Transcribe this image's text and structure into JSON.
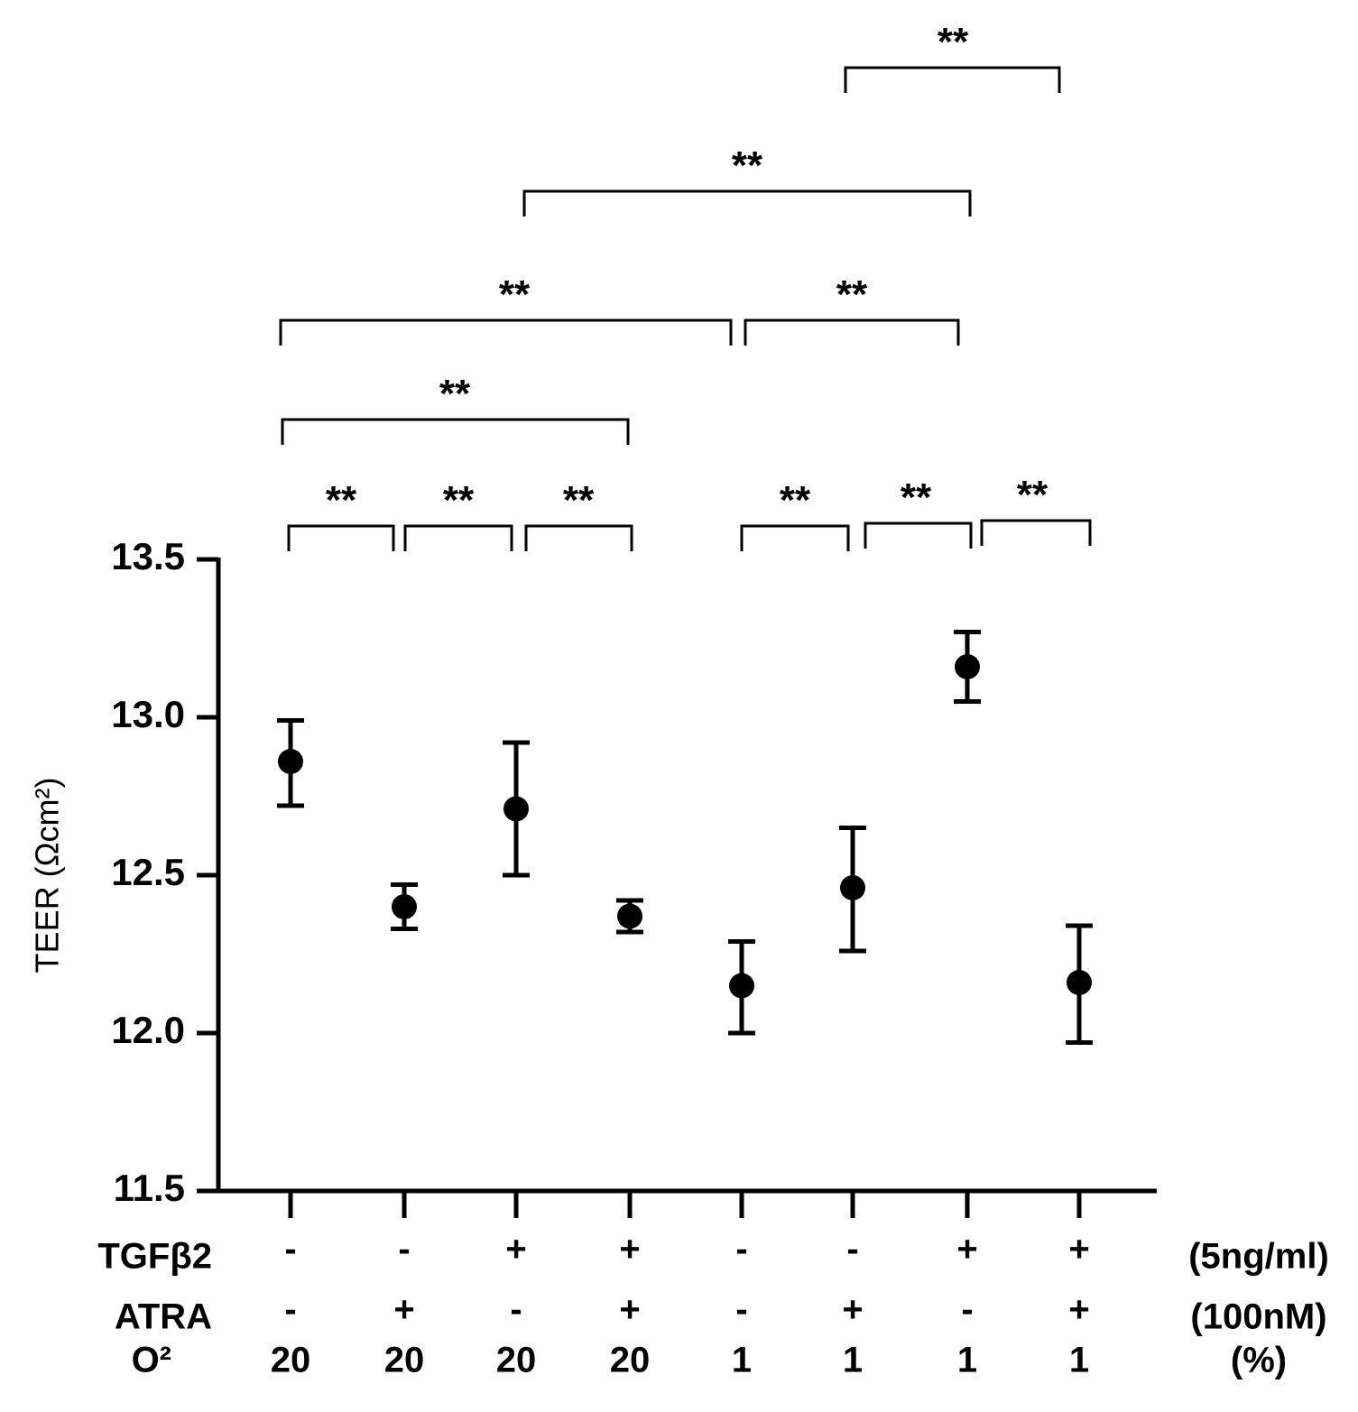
{
  "chart_data": {
    "type": "scatter",
    "title": "",
    "xlabel": "",
    "ylabel": "TEER (Ωcm²)",
    "ylim": [
      11.5,
      13.5
    ],
    "yticks": [
      "13.5",
      "13.0",
      "12.5",
      "12.0",
      "11.5"
    ],
    "ytick_values": [
      13.5,
      13.0,
      12.5,
      12.0,
      11.5
    ],
    "series": [
      {
        "name": "TEER",
        "values": [
          12.86,
          12.4,
          12.71,
          12.37,
          12.15,
          12.46,
          13.16,
          12.16
        ],
        "error_low": [
          12.72,
          12.33,
          12.5,
          12.32,
          12.0,
          12.26,
          13.05,
          11.97
        ],
        "error_high": [
          12.99,
          12.47,
          12.92,
          12.42,
          12.29,
          12.65,
          13.27,
          12.34
        ]
      }
    ],
    "conditions": [
      {
        "label": "TGFβ2",
        "unit": "(5ng/ml)",
        "values": [
          "-",
          "-",
          "+",
          "+",
          "-",
          "-",
          "+",
          "+"
        ]
      },
      {
        "label": "ATRA",
        "unit": "(100nM)",
        "values": [
          "-",
          "+",
          "-",
          "+",
          "-",
          "+",
          "-",
          "+"
        ]
      },
      {
        "label": "O²",
        "unit": "(%)",
        "values": [
          "20",
          "20",
          "20",
          "20",
          "1",
          "1",
          "1",
          "1"
        ]
      }
    ],
    "significance": [
      {
        "from": 0,
        "to": 1,
        "label": "**"
      },
      {
        "from": 1,
        "to": 2,
        "label": "**"
      },
      {
        "from": 2,
        "to": 3,
        "label": "**"
      },
      {
        "from": 4,
        "to": 5,
        "label": "**"
      },
      {
        "from": 5,
        "to": 6,
        "label": "**"
      },
      {
        "from": 6,
        "to": 7,
        "label": "**"
      },
      {
        "from": 0,
        "to": 3,
        "label": "**"
      },
      {
        "from": 0,
        "to": 4,
        "label": "**"
      },
      {
        "from": 4,
        "to": 6,
        "label": "**"
      },
      {
        "from": 2,
        "to": 6,
        "label": "**"
      },
      {
        "from": 5,
        "to": 7,
        "label": "**"
      }
    ]
  }
}
